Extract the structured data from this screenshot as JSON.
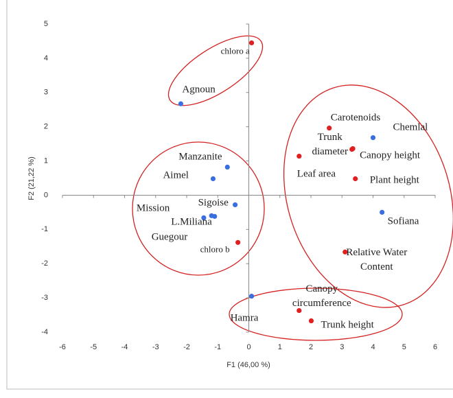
{
  "chart_data": {
    "type": "scatter",
    "x_label": "F1 (46,00 %)",
    "y_label": "F2 (21,22 %)",
    "xlim": [
      -6,
      6
    ],
    "ylim": [
      -4,
      5
    ],
    "xticks": [
      -6,
      -5,
      -4,
      -3,
      -2,
      -1,
      0,
      1,
      2,
      3,
      4,
      5,
      6
    ],
    "yticks": [
      -4,
      -3,
      -2,
      -1,
      0,
      1,
      2,
      3,
      4,
      5
    ],
    "series": [
      {
        "color": "#3b6fe0",
        "labels": [
          "Agnoun",
          "Chemlal",
          "Manzanite",
          "Aimel",
          "Sigoise",
          "Mission",
          "L.Miliana",
          "Guegour",
          "Sofiana",
          "Hamra"
        ],
        "x": [
          -2.19,
          4.0,
          -0.69,
          -1.15,
          -0.44,
          -1.45,
          -1.2,
          -1.1,
          4.29,
          0.09
        ],
        "values": [
          2.67,
          1.68,
          0.82,
          0.48,
          -0.28,
          -0.66,
          -0.6,
          -0.62,
          -0.5,
          -2.95
        ]
      },
      {
        "color": "#e02020",
        "labels": [
          "chloro a",
          "Carotenoids",
          "Trunk diameter",
          "Canopy height",
          "Leaf area",
          "Plant height",
          "chloro b",
          "Relative Water Content",
          "Canopy circumference",
          "Trunk height"
        ],
        "x": [
          0.09,
          2.59,
          3.32,
          3.35,
          1.62,
          3.43,
          -0.35,
          3.1,
          1.62,
          2.01
        ],
        "values": [
          4.45,
          1.96,
          1.34,
          1.36,
          1.14,
          0.48,
          -1.38,
          -1.66,
          -3.37,
          -3.67
        ]
      }
    ]
  }
}
